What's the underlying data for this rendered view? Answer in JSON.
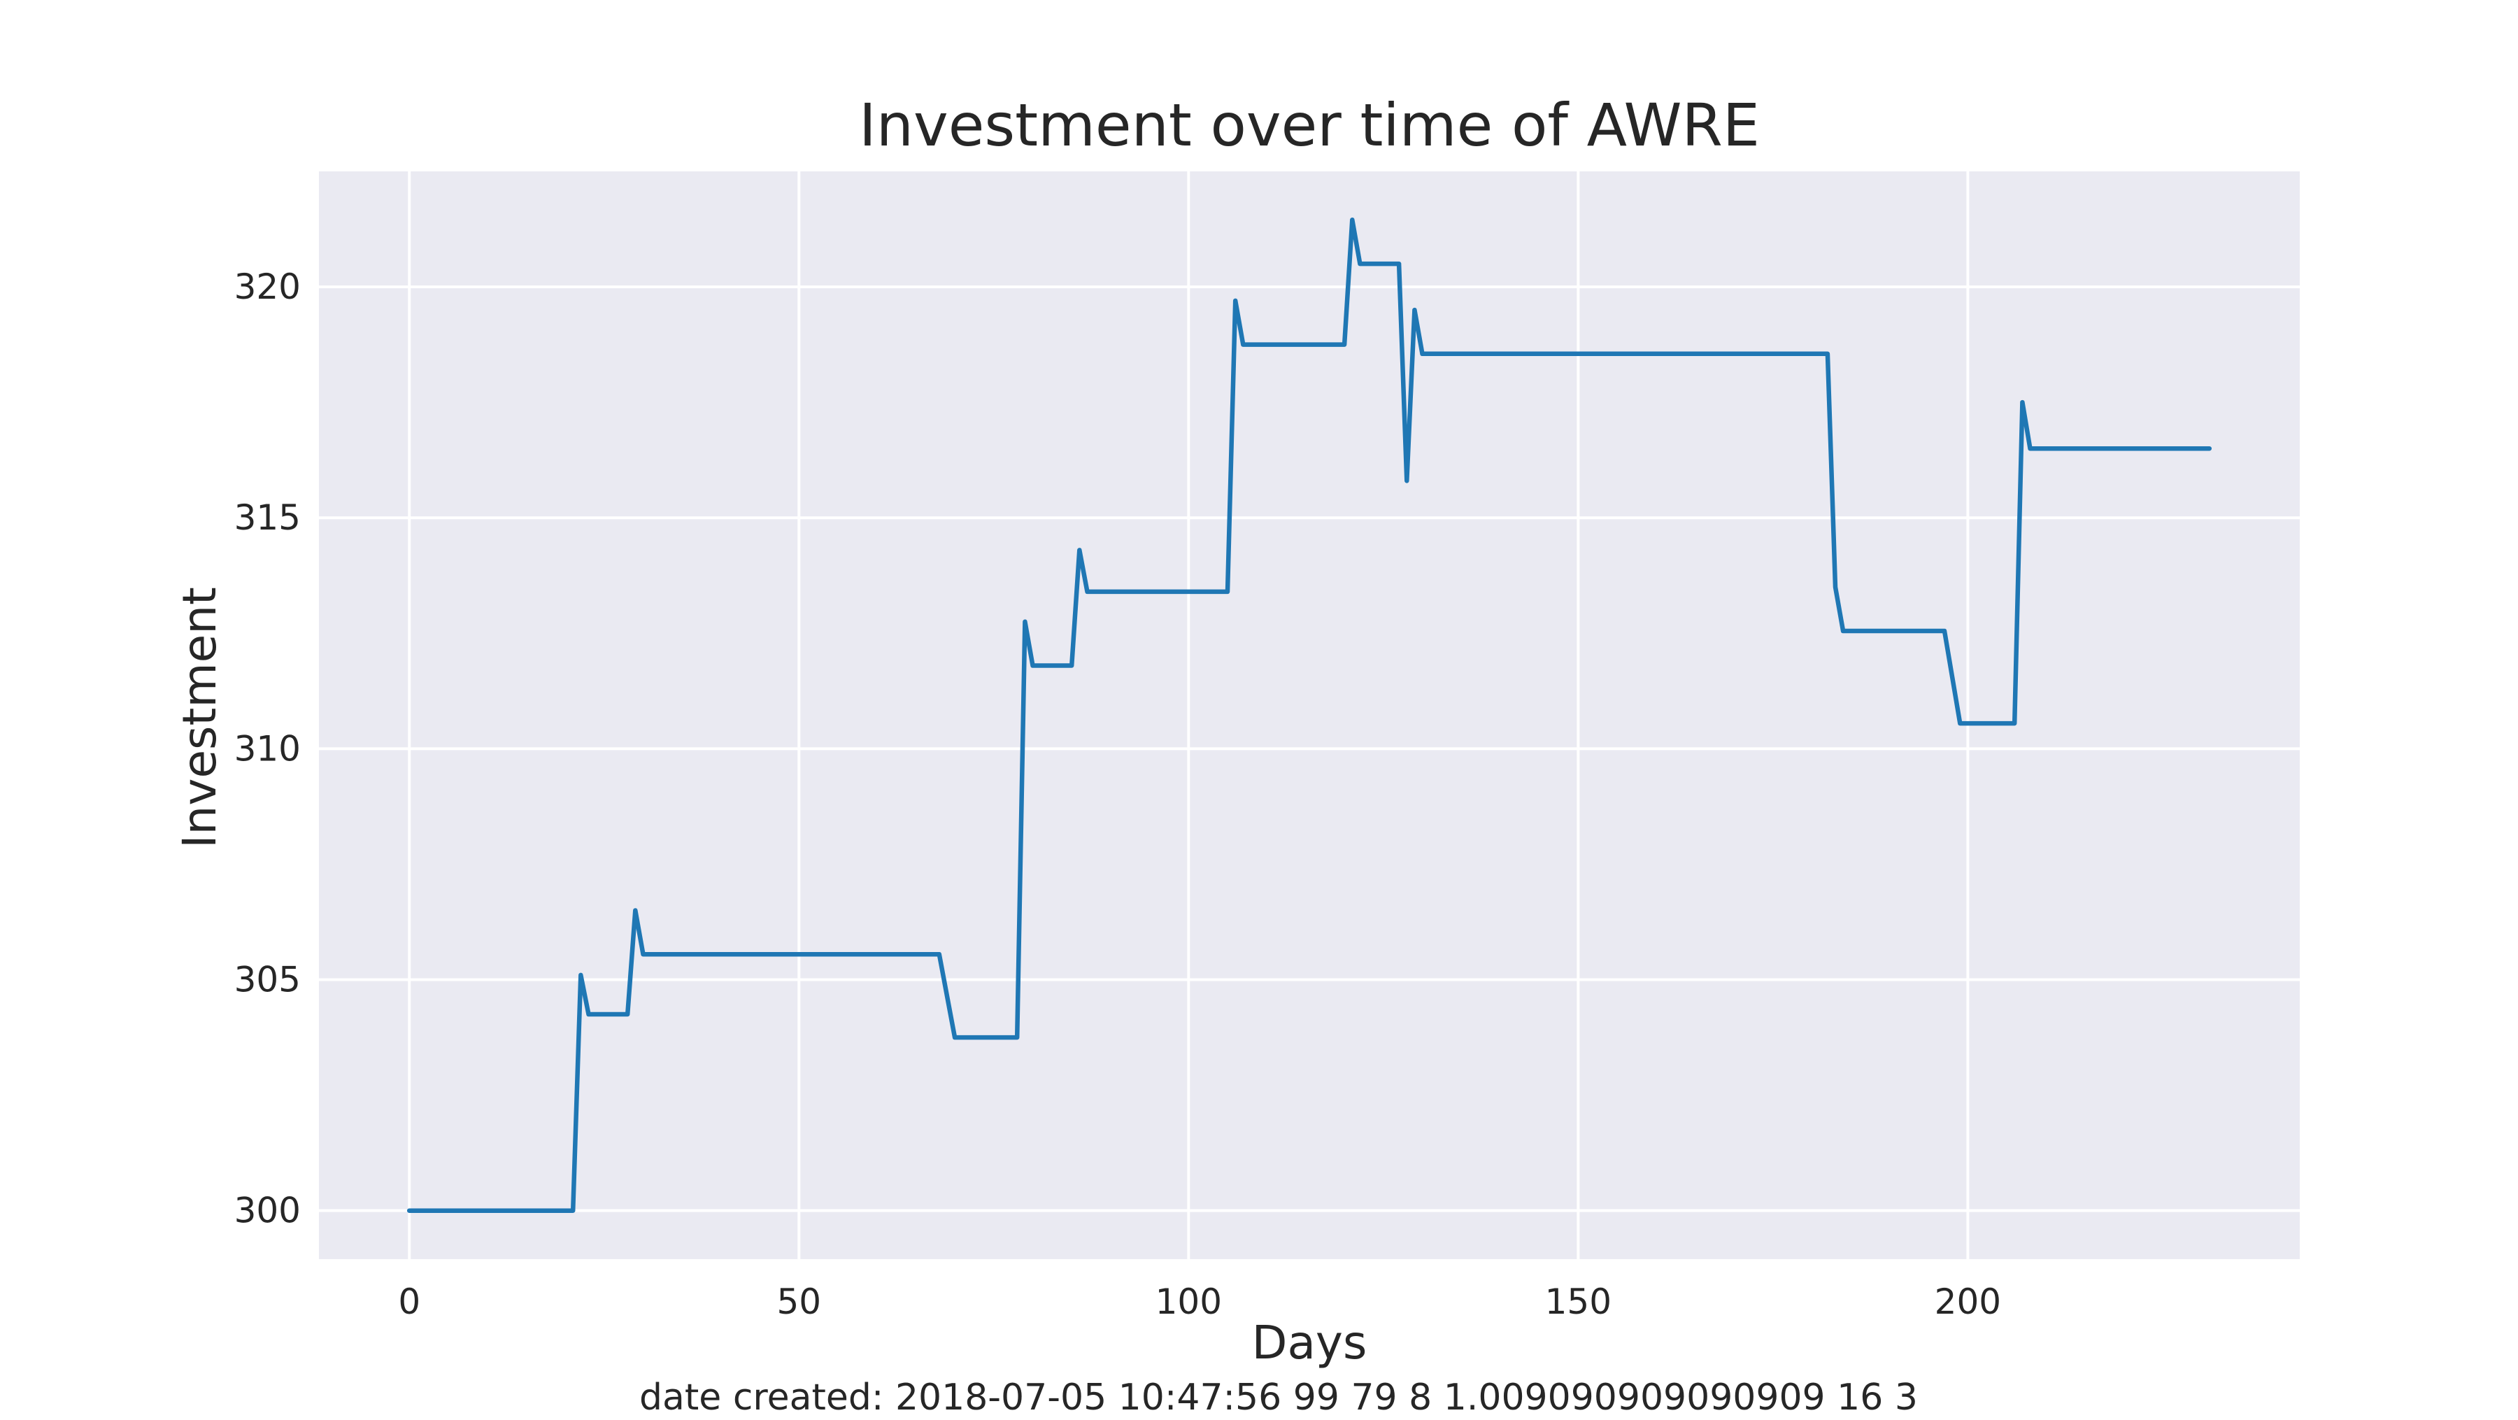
{
  "chart_data": {
    "type": "line",
    "title": "Investment over time of AWRE",
    "xlabel": "Days",
    "ylabel": "Investment",
    "footer": "date created: 2018-07-05 10:47:56 99 79 8 1.009090909090909 16 3",
    "xlim": [
      -11.6,
      242.6
    ],
    "ylim": [
      298.95,
      322.5
    ],
    "x_ticks": [
      0,
      50,
      100,
      150,
      200
    ],
    "y_ticks": [
      300,
      305,
      310,
      315,
      320
    ],
    "grid": true,
    "colors": {
      "line": "#1f77b4",
      "plot_background": "#eaeaf2",
      "grid": "#ffffff",
      "text": "#262626"
    },
    "series": [
      {
        "points": [
          [
            0,
            300.0
          ],
          [
            21,
            300.0
          ],
          [
            22,
            305.1
          ],
          [
            23,
            304.25
          ],
          [
            28,
            304.25
          ],
          [
            29,
            306.5
          ],
          [
            30,
            305.55
          ],
          [
            68,
            305.55
          ],
          [
            70,
            303.75
          ],
          [
            78,
            303.75
          ],
          [
            79,
            312.75
          ],
          [
            80,
            311.8
          ],
          [
            85,
            311.8
          ],
          [
            86,
            314.3
          ],
          [
            87,
            313.4
          ],
          [
            105,
            313.4
          ],
          [
            106,
            319.7
          ],
          [
            107,
            318.75
          ],
          [
            120,
            318.75
          ],
          [
            121,
            321.45
          ],
          [
            122,
            320.5
          ],
          [
            127,
            320.5
          ],
          [
            128,
            315.8
          ],
          [
            129,
            319.5
          ],
          [
            130,
            318.55
          ],
          [
            182,
            318.55
          ],
          [
            183,
            313.5
          ],
          [
            184,
            312.55
          ],
          [
            197,
            312.55
          ],
          [
            199,
            310.55
          ],
          [
            206,
            310.55
          ],
          [
            207,
            317.5
          ],
          [
            208,
            316.5
          ],
          [
            231,
            316.5
          ]
        ]
      }
    ]
  }
}
